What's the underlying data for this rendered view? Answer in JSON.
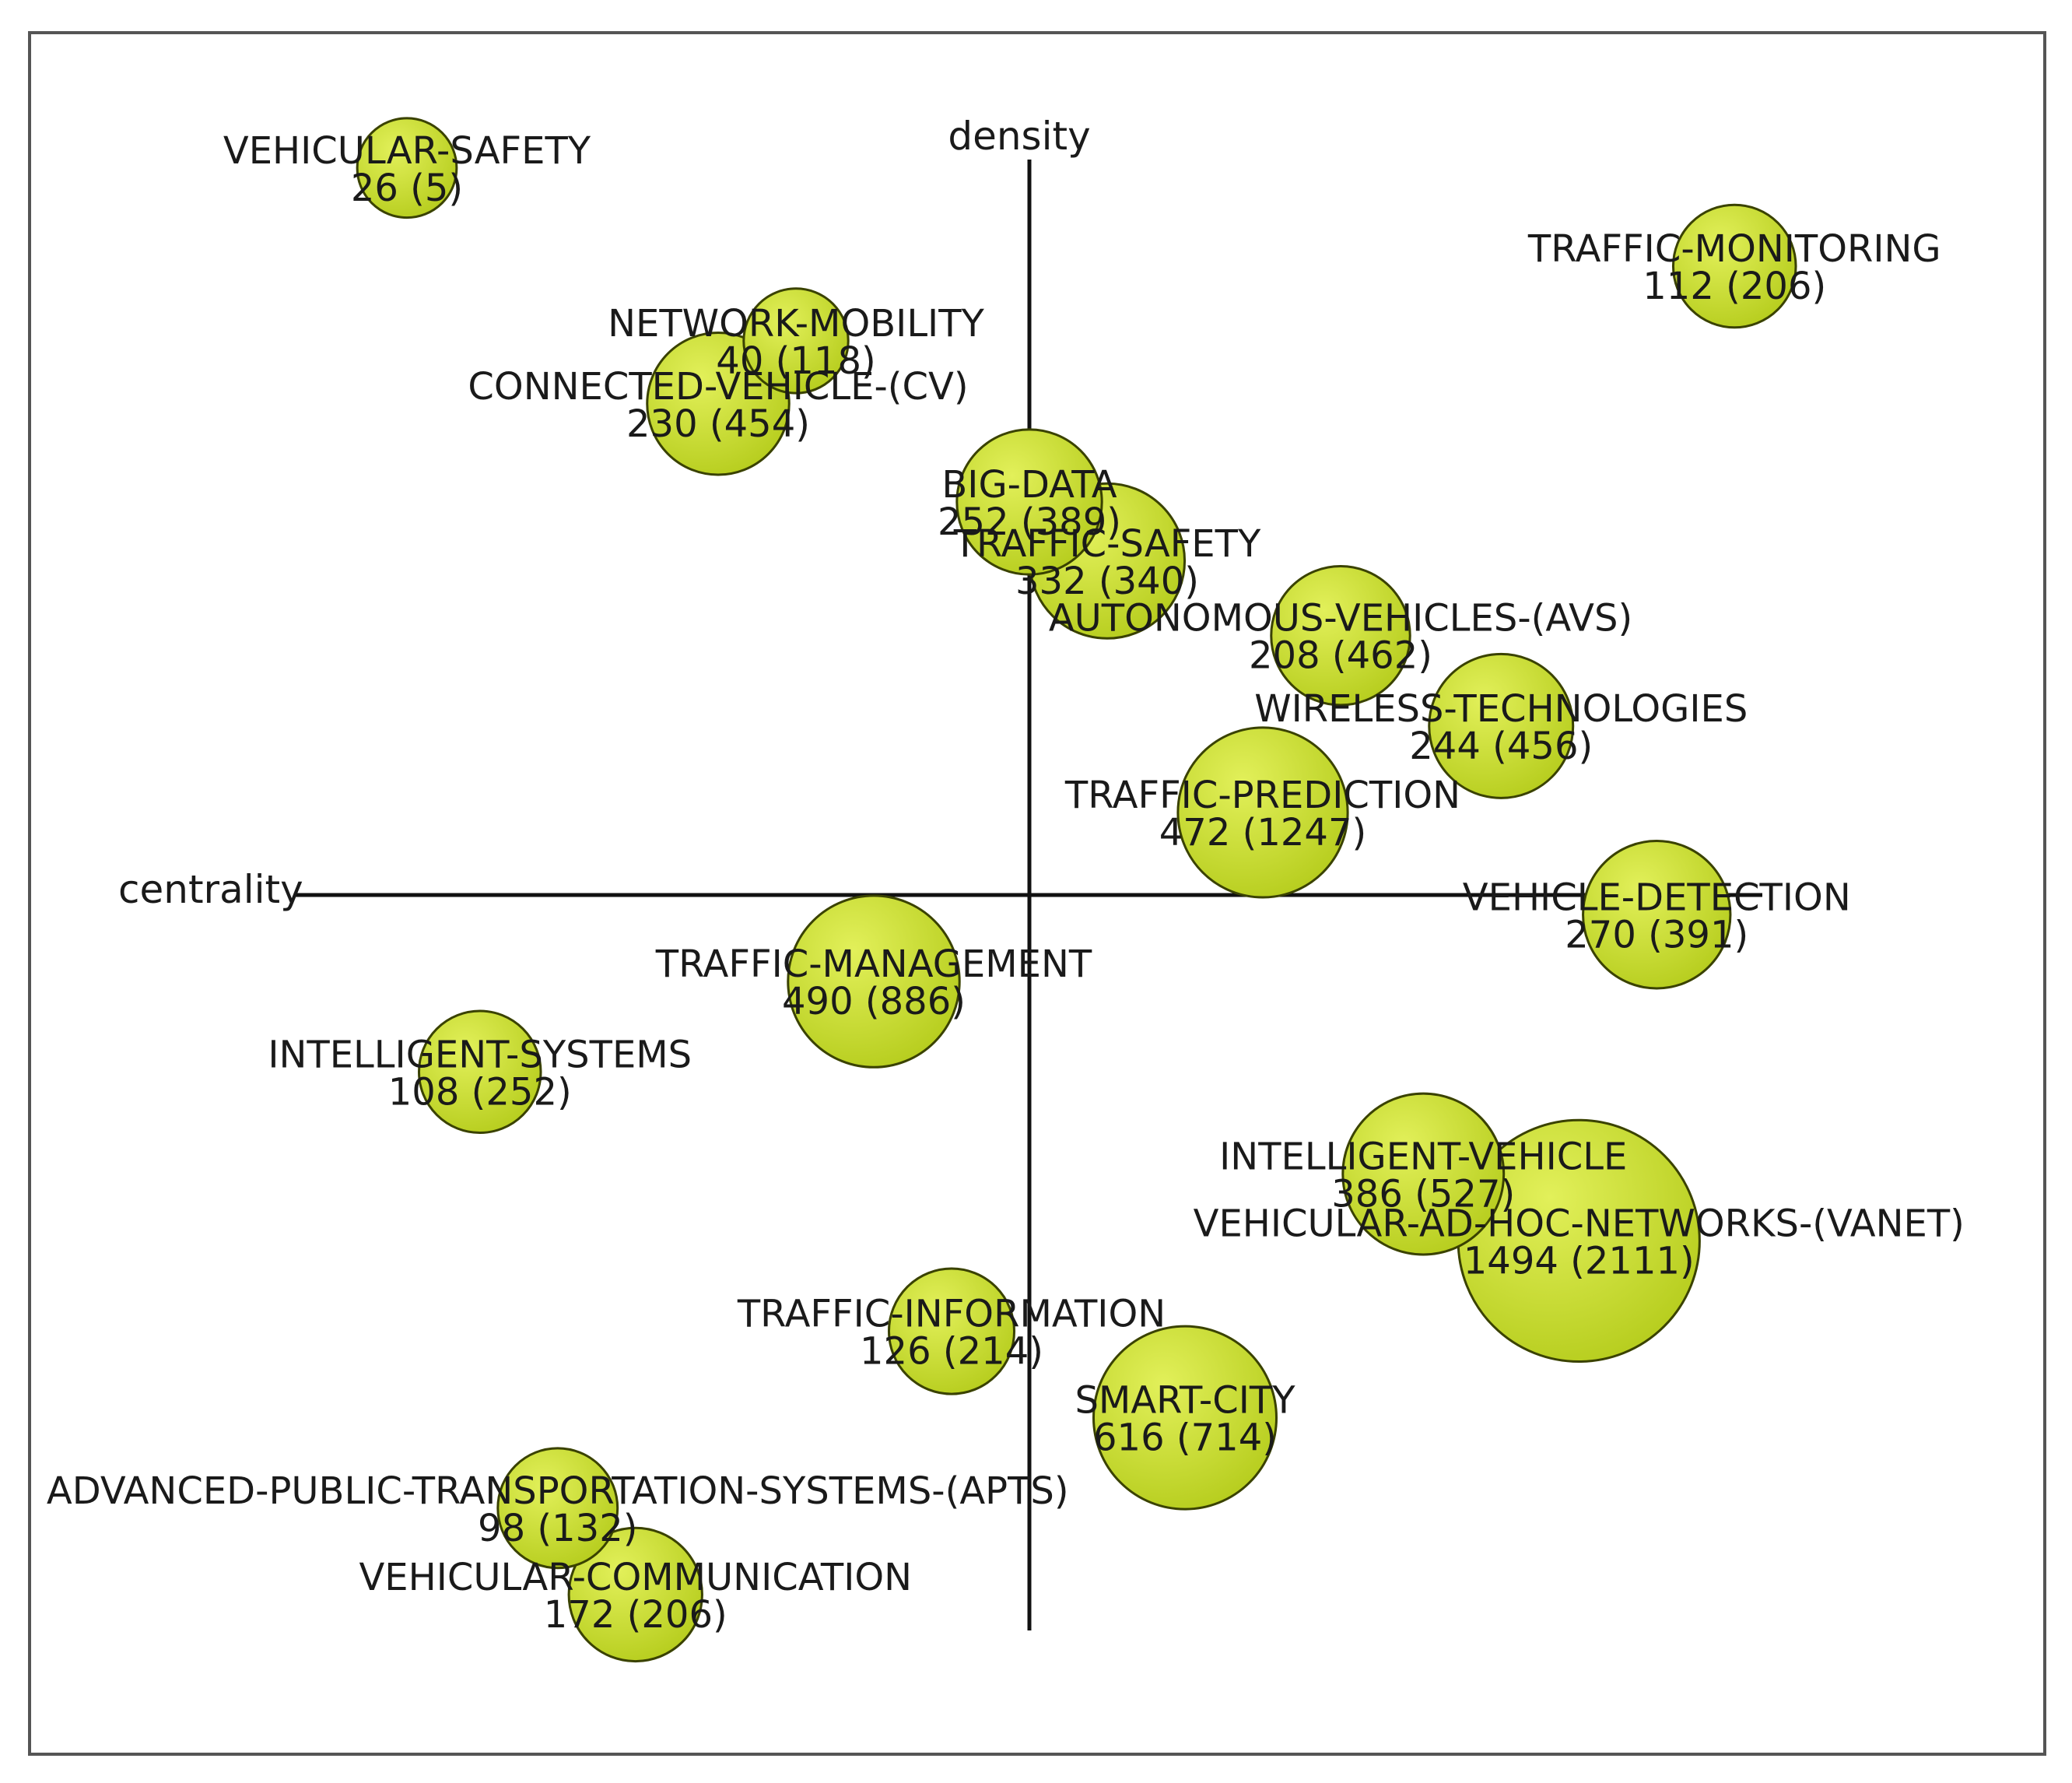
{
  "chart_data": {
    "type": "scatter",
    "title": "",
    "xlabel": "centrality",
    "ylabel": "density",
    "xlim": [
      -1.0,
      1.0
    ],
    "ylim": [
      -1.0,
      1.0
    ],
    "grid": false,
    "legend": "none",
    "colors": {
      "bubble_fill": "#b5cc1c",
      "bubble_highlight": "#e2f05a",
      "bubble_stroke": "#3a4200",
      "axis": "#111111",
      "frame": "#555555"
    },
    "points": [
      {
        "label": "VEHICULAR-SAFETY",
        "value": "26 (5)",
        "size": 26,
        "x": -0.64,
        "y": 0.925
      },
      {
        "label": "TRAFFIC-MONITORING",
        "value": "112 (206)",
        "size": 112,
        "x": 0.725,
        "y": 0.8
      },
      {
        "label": "NETWORK-MOBILITY",
        "value": "40 (118)",
        "size": 40,
        "x": -0.24,
        "y": 0.705
      },
      {
        "label": "CONNECTED-VEHICLE-(CV)",
        "value": "230 (454)",
        "size": 230,
        "x": -0.32,
        "y": 0.625
      },
      {
        "label": "BIG-DATA",
        "value": "252 (389)",
        "size": 252,
        "x": 0.0,
        "y": 0.5
      },
      {
        "label": "TRAFFIC-SAFETY",
        "value": "332 (340)",
        "size": 332,
        "x": 0.08,
        "y": 0.425
      },
      {
        "label": "AUTONOMOUS-VEHICLES-(AVS)",
        "value": "208 (462)",
        "size": 208,
        "x": 0.32,
        "y": 0.33
      },
      {
        "label": "WIRELESS-TECHNOLOGIES",
        "value": "244 (456)",
        "size": 244,
        "x": 0.485,
        "y": 0.215
      },
      {
        "label": "TRAFFIC-PREDICTION",
        "value": "472 (1247)",
        "size": 472,
        "x": 0.24,
        "y": 0.105
      },
      {
        "label": "VEHICLE-DETECTION",
        "value": "270 (391)",
        "size": 270,
        "x": 0.645,
        "y": -0.025
      },
      {
        "label": "TRAFFIC-MANAGEMENT",
        "value": "490 (886)",
        "size": 490,
        "x": -0.16,
        "y": -0.11
      },
      {
        "label": "INTELLIGENT-SYSTEMS",
        "value": "108 (252)",
        "size": 108,
        "x": -0.565,
        "y": -0.225
      },
      {
        "label": "INTELLIGENT-VEHICLE",
        "value": "386 (527)",
        "size": 386,
        "x": 0.405,
        "y": -0.355
      },
      {
        "label": "VEHICULAR-AD-HOC-NETWORKS-(VANET)",
        "value": "1494 (2111)",
        "size": 1494,
        "x": 0.565,
        "y": -0.44
      },
      {
        "label": "TRAFFIC-INFORMATION",
        "value": "126 (214)",
        "size": 126,
        "x": -0.08,
        "y": -0.555
      },
      {
        "label": "SMART-CITY",
        "value": "616 (714)",
        "size": 616,
        "x": 0.16,
        "y": -0.665
      },
      {
        "label": "ADVANCED-PUBLIC-TRANSPORTATION-SYSTEMS-(APTS)",
        "value": "98 (132)",
        "size": 98,
        "x": -0.485,
        "y": -0.78
      },
      {
        "label": "VEHICULAR-COMMUNICATION",
        "value": "172 (206)",
        "size": 172,
        "x": -0.405,
        "y": -0.89
      }
    ]
  }
}
